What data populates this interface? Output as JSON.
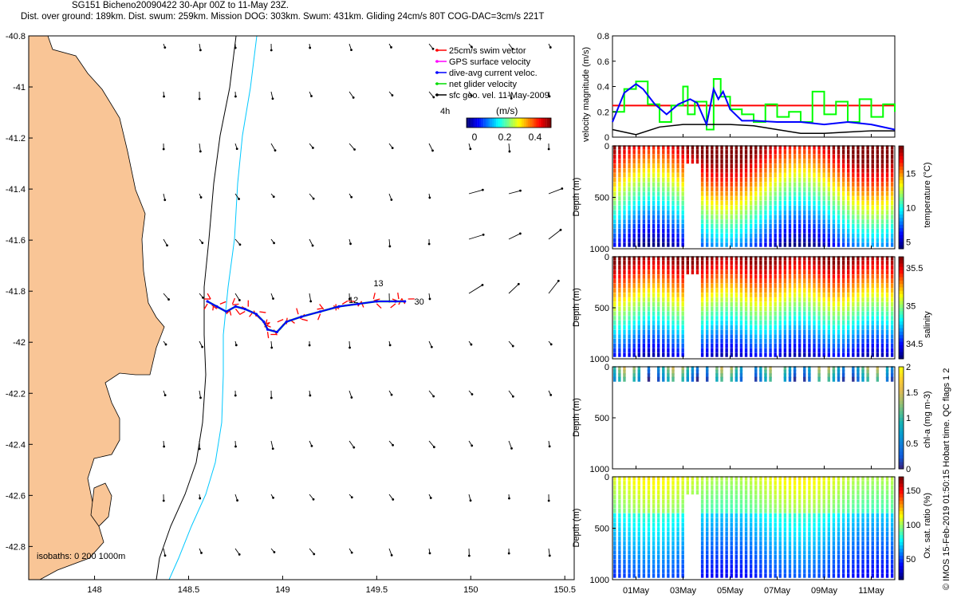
{
  "header": {
    "line1": "SG151 Bicheno20090422 30-Apr 00Z to 11-May 23Z.",
    "line2": "Dist. over ground: 189km. Dist. swum: 259km. Mission DOG: 303km. Swum: 431km. Gliding 24cm/s 80T COG-DAC=3cm/s 221T"
  },
  "credit": "© IMOS 15-Feb-2019 01:50:15 Hobart time. QC flags 1  2",
  "colors": {
    "land": "#f9c596",
    "isobath_200": "#000000",
    "isobath_1000": "#00c8ff",
    "swim": "#ff0000",
    "gps": "#ff00ff",
    "dac": "#0000ff",
    "net": "#00ff00",
    "geo": "#000000"
  },
  "map": {
    "lon_range": [
      147.65,
      150.55
    ],
    "lat_range": [
      -42.93,
      -40.8
    ],
    "lon_ticks": [
      "148",
      "148.5",
      "149",
      "149.5",
      "150",
      "150.5"
    ],
    "lat_ticks": [
      "-40.8",
      "-41",
      "-41.2",
      "-41.4",
      "-41.6",
      "-41.8",
      "-42",
      "-42.2",
      "-42.4",
      "-42.6",
      "-42.8"
    ],
    "isobath_text": "isobaths: 0   200  1000m",
    "legend": [
      "25cm/s swim vector",
      "GPS surface velocity",
      "dive-avg current veloc.",
      "net glider velocity",
      "sfc geo. vel. 11-May-2009"
    ],
    "legend_scale_label": "4h",
    "colorbar_title": "(m/s)",
    "colorbar_ticks": [
      "0",
      "0.2",
      "0.4"
    ],
    "track_labels": [
      "13",
      "12",
      "30"
    ],
    "track": [
      [
        148.6,
        -41.84
      ],
      [
        148.65,
        -41.86
      ],
      [
        148.7,
        -41.88
      ],
      [
        148.75,
        -41.86
      ],
      [
        148.8,
        -41.87
      ],
      [
        148.86,
        -41.89
      ],
      [
        148.9,
        -41.92
      ],
      [
        148.92,
        -41.95
      ],
      [
        148.97,
        -41.96
      ],
      [
        149.02,
        -41.92
      ],
      [
        149.1,
        -41.9
      ],
      [
        149.2,
        -41.88
      ],
      [
        149.3,
        -41.86
      ],
      [
        149.4,
        -41.85
      ],
      [
        149.5,
        -41.84
      ],
      [
        149.6,
        -41.84
      ],
      [
        149.65,
        -41.84
      ]
    ]
  },
  "chart_data": [
    {
      "type": "line",
      "ylabel": "velocity magnitude (m/s)",
      "ylim": [
        0,
        0.8
      ],
      "yticks": [
        "0",
        "0.2",
        "0.4",
        "0.6",
        "0.8"
      ],
      "x_range": [
        0,
        12
      ],
      "reference": 0.25,
      "series": [
        {
          "color": "#0000ff",
          "x": [
            0,
            0.5,
            1,
            1.3,
            1.8,
            2.3,
            2.8,
            3.3,
            3.6,
            4,
            4.3,
            4.5,
            4.7,
            5,
            5.5,
            6,
            7,
            8,
            9,
            10,
            11,
            12
          ],
          "values": [
            0.12,
            0.35,
            0.42,
            0.38,
            0.26,
            0.18,
            0.26,
            0.3,
            0.27,
            0.1,
            0.38,
            0.3,
            0.36,
            0.22,
            0.13,
            0.13,
            0.12,
            0.12,
            0.1,
            0.12,
            0.1,
            0.06
          ]
        },
        {
          "color": "#000000",
          "x": [
            0,
            1,
            1.5,
            2,
            3,
            4,
            5,
            6,
            7,
            8,
            9,
            10,
            11,
            12
          ],
          "values": [
            0.06,
            0.02,
            0.05,
            0.08,
            0.1,
            0.1,
            0.1,
            0.09,
            0.06,
            0.03,
            0.03,
            0.04,
            0.05,
            0.05
          ]
        },
        {
          "color": "#00ff00",
          "x": [
            0,
            0.5,
            1,
            1.5,
            2,
            2.5,
            3,
            3.2,
            3.5,
            4,
            4.3,
            4.6,
            5,
            5.5,
            6,
            6.5,
            7,
            7.5,
            8,
            8.5,
            9,
            9.5,
            10,
            10.5,
            11,
            11.5,
            12
          ],
          "values": [
            0.2,
            0.38,
            0.44,
            0.26,
            0.12,
            0.25,
            0.4,
            0.18,
            0.28,
            0.06,
            0.46,
            0.32,
            0.22,
            0.18,
            0.12,
            0.26,
            0.16,
            0.2,
            0.12,
            0.36,
            0.18,
            0.28,
            0.12,
            0.3,
            0.16,
            0.26,
            0.2
          ]
        }
      ]
    },
    {
      "type": "heatmap",
      "ylabel": "Depth (m)",
      "colorbar_label": "temperature (°C)",
      "colorbar_ticks": [
        "5",
        "10",
        "15"
      ],
      "clim": [
        4,
        19
      ],
      "ylim": [
        0,
        1000
      ],
      "yticks": [
        "0",
        "500",
        "1000"
      ]
    },
    {
      "type": "heatmap",
      "ylabel": "Depth (m)",
      "colorbar_label": "salinity",
      "colorbar_ticks": [
        "34.5",
        "35",
        "35.5"
      ],
      "clim": [
        34.3,
        35.65
      ],
      "ylim": [
        0,
        1000
      ],
      "yticks": [
        "0",
        "500",
        "1000"
      ]
    },
    {
      "type": "heatmap",
      "ylabel": "Depth (m)",
      "colorbar_label": "chl-a (mg m-3)",
      "colorbar_ticks": [
        "0",
        "0.5",
        "1",
        "1.5",
        "2"
      ],
      "clim": [
        0,
        2
      ],
      "ylim": [
        0,
        1000
      ],
      "yticks": [
        "0",
        "500",
        "1000"
      ]
    },
    {
      "type": "heatmap",
      "ylabel": "Depth (m)",
      "colorbar_label": "Ox. sat. ratio (%)",
      "colorbar_ticks": [
        "50",
        "100",
        "150"
      ],
      "clim": [
        20,
        170
      ],
      "ylim": [
        0,
        1000
      ],
      "yticks": [
        "0",
        "500",
        "1000"
      ],
      "x_ticks": [
        "01May",
        "03May",
        "05May",
        "07May",
        "09May",
        "11May"
      ]
    }
  ]
}
